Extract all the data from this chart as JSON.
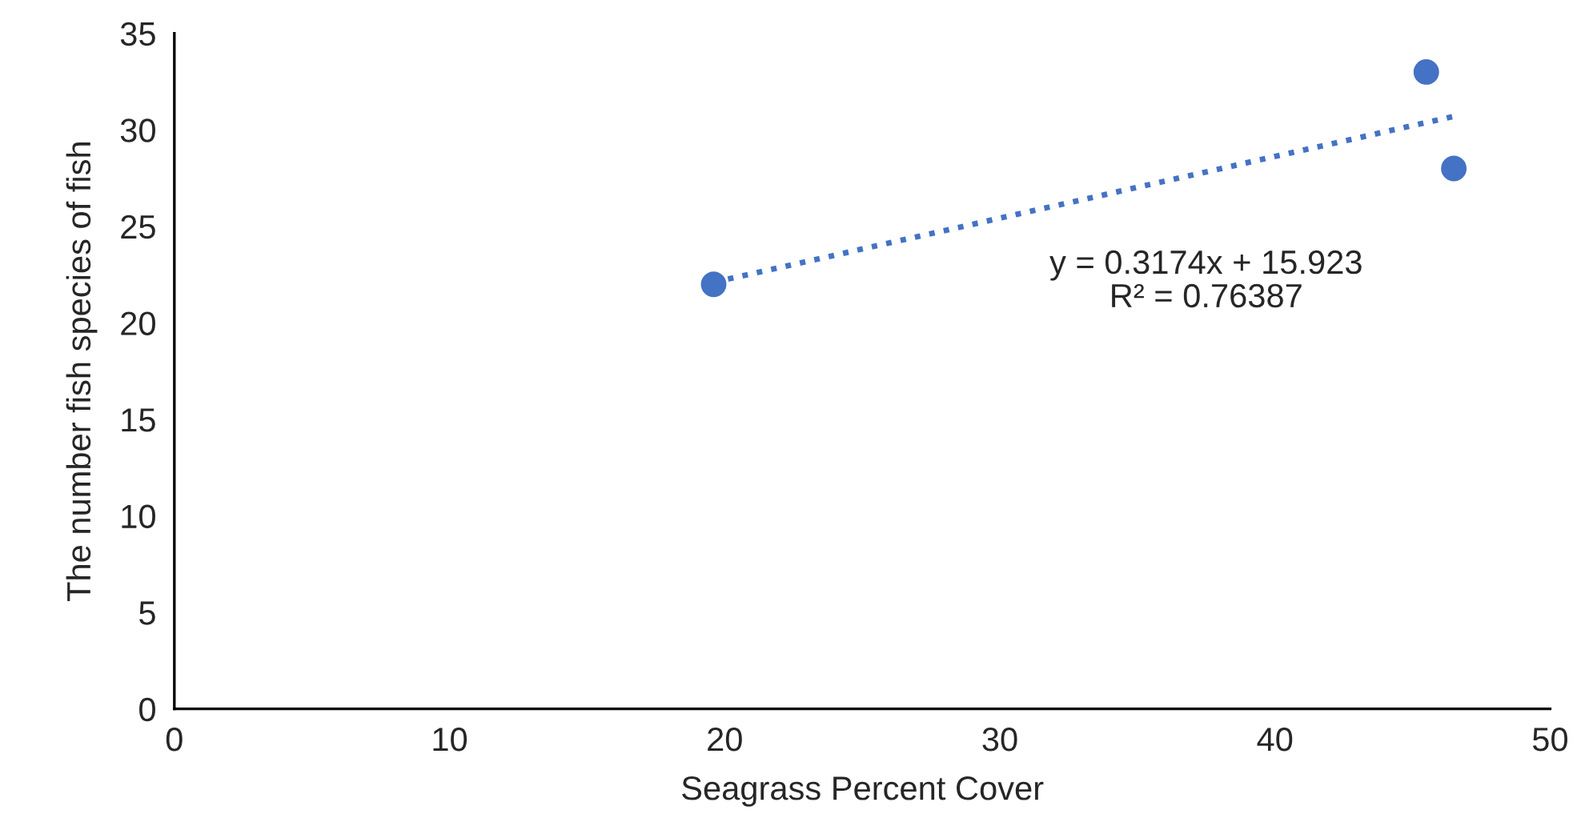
{
  "chart_data": {
    "type": "scatter",
    "xlabel": "Seagrass Percent Cover",
    "ylabel": "The number fish species of fish",
    "xlim": [
      0,
      50
    ],
    "xticks": [
      0,
      10,
      20,
      30,
      40,
      50
    ],
    "ylim": [
      0,
      35
    ],
    "yticks": [
      0,
      5,
      10,
      15,
      20,
      25,
      30,
      35
    ],
    "grid": false,
    "legend": false,
    "series": [
      {
        "color": "#4472c4",
        "marker": "circle",
        "x": [
          19.6,
          45.5,
          46.5
        ],
        "values": [
          22,
          33,
          28
        ]
      },
      {
        "type": "line",
        "color": "#4472c4",
        "line_style": "dotted",
        "x": [
          19.6,
          46.5
        ],
        "values": [
          22.1,
          30.7
        ]
      }
    ],
    "annotations": [
      "y = 0.3174x + 15.923\nR² = 0.76387"
    ]
  }
}
